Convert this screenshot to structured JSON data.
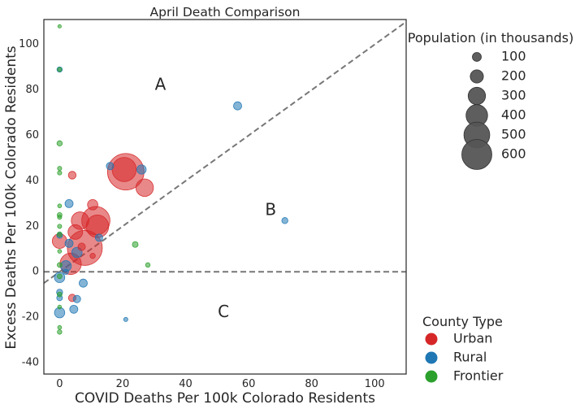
{
  "chart_data": {
    "type": "scatter",
    "title": "April Death Comparison",
    "xlabel": "COVID Deaths Per 100k Colorado Residents",
    "ylabel": "Excess Deaths Per 100k Colorado Residents",
    "xlim": [
      -5,
      110
    ],
    "ylim": [
      -45,
      111
    ],
    "xticks": [
      0,
      20,
      40,
      60,
      80,
      100
    ],
    "yticks": [
      -40,
      -20,
      0,
      20,
      40,
      60,
      80,
      100
    ],
    "grid": false,
    "reference_lines": [
      {
        "kind": "diagonal",
        "slope": 1,
        "intercept": 0,
        "style": "dashed",
        "color": "#777777"
      },
      {
        "kind": "horizontal",
        "y": 0,
        "style": "dashed",
        "color": "#777777"
      }
    ],
    "region_labels": [
      {
        "text": "A",
        "x": 32,
        "y": 82
      },
      {
        "text": "B",
        "x": 67,
        "y": 27
      },
      {
        "text": "C",
        "x": 52,
        "y": -18
      }
    ],
    "colors": {
      "Urban": "#d62728",
      "Rural": "#1f77b4",
      "Frontier": "#2ca02c"
    },
    "size_legend": {
      "title": "Population (in thousands)",
      "entries": [
        {
          "label": "100",
          "population": 100
        },
        {
          "label": "200",
          "population": 200
        },
        {
          "label": "300",
          "population": 300
        },
        {
          "label": "400",
          "population": 400
        },
        {
          "label": "500",
          "population": 500
        },
        {
          "label": "600",
          "population": 600
        }
      ]
    },
    "color_legend": {
      "title": "County Type",
      "entries": [
        {
          "label": "Urban",
          "color": "#d62728"
        },
        {
          "label": "Rural",
          "color": "#1f77b4"
        },
        {
          "label": "Frontier",
          "color": "#2ca02c"
        }
      ]
    },
    "series": [
      {
        "name": "Urban",
        "color": "#d62728",
        "points": [
          {
            "x": 21,
            "y": 44,
            "pop": 720
          },
          {
            "x": 20.5,
            "y": 45,
            "pop": 300
          },
          {
            "x": 27,
            "y": 37,
            "pop": 150
          },
          {
            "x": 11.5,
            "y": 22.5,
            "pop": 420
          },
          {
            "x": 12,
            "y": 20,
            "pop": 260
          },
          {
            "x": 6.5,
            "y": 22.5,
            "pop": 150
          },
          {
            "x": 8,
            "y": 10.5,
            "pop": 660
          },
          {
            "x": 5,
            "y": 17.5,
            "pop": 100
          },
          {
            "x": 3.5,
            "y": 3.5,
            "pop": 230
          },
          {
            "x": 0,
            "y": 13.5,
            "pop": 100
          },
          {
            "x": 10.5,
            "y": 29.5,
            "pop": 45
          },
          {
            "x": 4,
            "y": 42.5,
            "pop": 22
          },
          {
            "x": 4,
            "y": -11.5,
            "pop": 20
          },
          {
            "x": 7,
            "y": 11,
            "pop": 20
          },
          {
            "x": 10.5,
            "y": 7,
            "pop": 8
          }
        ]
      },
      {
        "name": "Rural",
        "color": "#1f77b4",
        "points": [
          {
            "x": 56.5,
            "y": 73,
            "pop": 25
          },
          {
            "x": 71.5,
            "y": 22.5,
            "pop": 12
          },
          {
            "x": 26,
            "y": 45,
            "pop": 35
          },
          {
            "x": 16,
            "y": 46.5,
            "pop": 20
          },
          {
            "x": 3,
            "y": 30,
            "pop": 25
          },
          {
            "x": 12.5,
            "y": 15,
            "pop": 20
          },
          {
            "x": 3,
            "y": 12.5,
            "pop": 25
          },
          {
            "x": 5.5,
            "y": 8.5,
            "pop": 45
          },
          {
            "x": 2,
            "y": 2.5,
            "pop": 50
          },
          {
            "x": 0,
            "y": -2.5,
            "pop": 45
          },
          {
            "x": 0,
            "y": -18,
            "pop": 45
          },
          {
            "x": 4.5,
            "y": -16.5,
            "pop": 25
          },
          {
            "x": 7.5,
            "y": -5,
            "pop": 25
          },
          {
            "x": 5.5,
            "y": -12,
            "pop": 20
          },
          {
            "x": 0,
            "y": -9,
            "pop": 12
          },
          {
            "x": 0,
            "y": -11.5,
            "pop": 10
          },
          {
            "x": 21,
            "y": -21,
            "pop": 4
          },
          {
            "x": 0,
            "y": 89,
            "pop": 8
          },
          {
            "x": 0,
            "y": 16,
            "pop": 10
          },
          {
            "x": 2,
            "y": 0,
            "pop": 8
          }
        ]
      },
      {
        "name": "Frontier",
        "color": "#2ca02c",
        "points": [
          {
            "x": 0,
            "y": 108,
            "pop": 2
          },
          {
            "x": 0,
            "y": 89,
            "pop": 4
          },
          {
            "x": 0,
            "y": 56.5,
            "pop": 8
          },
          {
            "x": 0,
            "y": 45.5,
            "pop": 4
          },
          {
            "x": 0,
            "y": 43.5,
            "pop": 4
          },
          {
            "x": 0,
            "y": 29,
            "pop": 3
          },
          {
            "x": 0,
            "y": 25,
            "pop": 6
          },
          {
            "x": 0,
            "y": 24,
            "pop": 4
          },
          {
            "x": 0,
            "y": 20,
            "pop": 4
          },
          {
            "x": 0,
            "y": 16.5,
            "pop": 6
          },
          {
            "x": 0,
            "y": 9,
            "pop": 3
          },
          {
            "x": 0,
            "y": 3,
            "pop": 6
          },
          {
            "x": 0,
            "y": -2,
            "pop": 6
          },
          {
            "x": 0,
            "y": -10,
            "pop": 6
          },
          {
            "x": 0,
            "y": -15.5,
            "pop": 3
          },
          {
            "x": 0,
            "y": -24.5,
            "pop": 3
          },
          {
            "x": 0,
            "y": -26.5,
            "pop": 5
          },
          {
            "x": 24,
            "y": 12,
            "pop": 10
          },
          {
            "x": 28,
            "y": 3,
            "pop": 5
          }
        ]
      }
    ]
  }
}
